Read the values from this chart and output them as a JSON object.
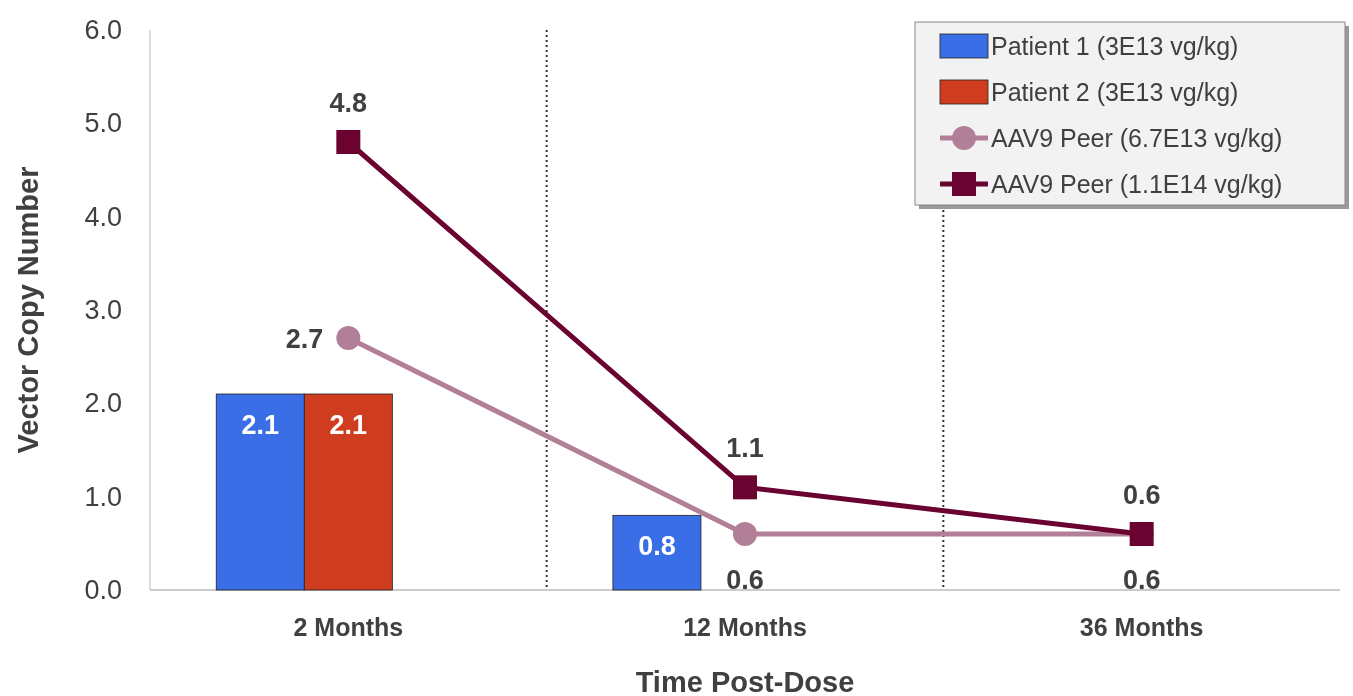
{
  "chart_data": {
    "type": "bar",
    "xlabel": "Time Post-Dose",
    "ylabel": "Vector Copy Number",
    "categories": [
      "2 Months",
      "12 Months",
      "36 Months"
    ],
    "series": [
      {
        "name": "Patient 1 (3E13 vg/kg)",
        "color": "#3a6ee6",
        "values": [
          2.1,
          0.8,
          null
        ]
      },
      {
        "name": "Patient 2 (3E13 vg/kg)",
        "color": "#d03c1e",
        "values": [
          2.1,
          null,
          null
        ]
      },
      {
        "name": "AAV9 Peer (6.7E13 vg/kg)",
        "type": "line",
        "color": "#b27f98",
        "marker": "circle",
        "values": [
          2.7,
          0.6,
          0.6
        ]
      },
      {
        "name": "AAV9 Peer (1.1E14 vg/kg)",
        "type": "line",
        "color": "#6a0330",
        "marker": "square",
        "values": [
          4.8,
          1.1,
          0.6
        ]
      }
    ],
    "ylim": [
      0,
      6
    ],
    "yticks": [
      {
        "value": 0,
        "label": "0.0"
      },
      {
        "value": 1,
        "label": "1.0"
      },
      {
        "value": 2,
        "label": "2.0"
      },
      {
        "value": 3,
        "label": "3.0"
      },
      {
        "value": 4,
        "label": "4.0"
      },
      {
        "value": 5,
        "label": "5.0"
      },
      {
        "value": 6,
        "label": "6.0"
      }
    ],
    "data_labels": true,
    "grid": false,
    "legend": "top right"
  }
}
